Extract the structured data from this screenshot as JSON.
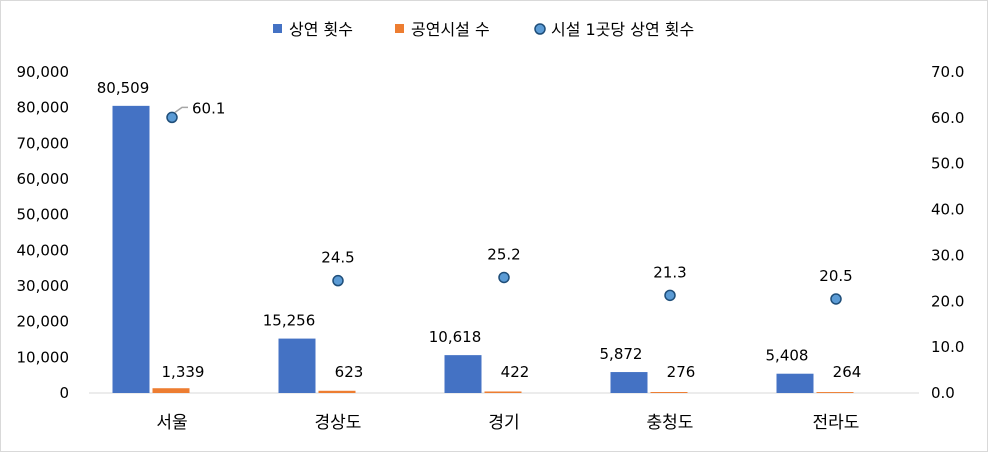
{
  "chart_data": {
    "type": "bar",
    "categories": [
      "서울",
      "경상도",
      "경기",
      "충청도",
      "전라도"
    ],
    "series": [
      {
        "name": "상연 횟수",
        "kind": "bar",
        "axis": "left",
        "color": "#4472C4",
        "values": [
          80509,
          15256,
          10618,
          5872,
          5408
        ],
        "labels": [
          "80,509",
          "15,256",
          "10,618",
          "5,872",
          "5,408"
        ]
      },
      {
        "name": "공연시설 수",
        "kind": "bar",
        "axis": "left",
        "color": "#ED7D31",
        "values": [
          1339,
          623,
          422,
          276,
          264
        ],
        "labels": [
          "1,339",
          "623",
          "422",
          "276",
          "264"
        ]
      },
      {
        "name": "시설 1곳당 상연 횟수",
        "kind": "scatter",
        "axis": "right",
        "color": "#5B9BD5",
        "values": [
          60.1,
          24.5,
          25.2,
          21.3,
          20.5
        ],
        "labels": [
          "60.1",
          "24.5",
          "25.2",
          "21.3",
          "20.5"
        ]
      }
    ],
    "ylim": [
      0,
      90000
    ],
    "y2lim": [
      0,
      70
    ],
    "y_ticks": [
      "0",
      "10,000",
      "20,000",
      "30,000",
      "40,000",
      "50,000",
      "60,000",
      "70,000",
      "80,000",
      "90,000"
    ],
    "y2_ticks": [
      "0.0",
      "10.0",
      "20.0",
      "30.0",
      "40.0",
      "50.0",
      "60.0",
      "70.0"
    ],
    "grid": false,
    "legend": "top"
  }
}
